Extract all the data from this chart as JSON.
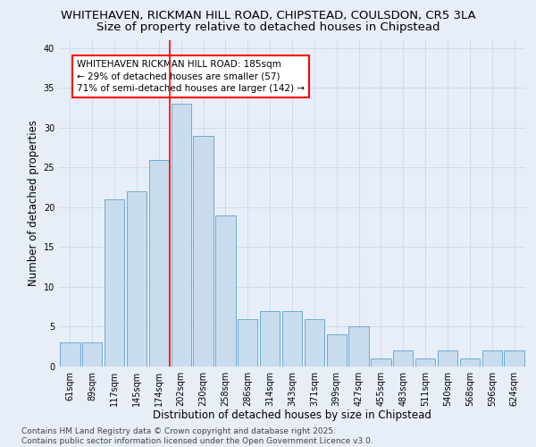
{
  "title_line1": "WHITEHAVEN, RICKMAN HILL ROAD, CHIPSTEAD, COULSDON, CR5 3LA",
  "title_line2": "Size of property relative to detached houses in Chipstead",
  "xlabel": "Distribution of detached houses by size in Chipstead",
  "ylabel": "Number of detached properties",
  "categories": [
    "61sqm",
    "89sqm",
    "117sqm",
    "145sqm",
    "174sqm",
    "202sqm",
    "230sqm",
    "258sqm",
    "286sqm",
    "314sqm",
    "343sqm",
    "371sqm",
    "399sqm",
    "427sqm",
    "455sqm",
    "483sqm",
    "511sqm",
    "540sqm",
    "568sqm",
    "596sqm",
    "624sqm"
  ],
  "values": [
    3,
    3,
    21,
    22,
    26,
    33,
    29,
    19,
    6,
    7,
    7,
    6,
    4,
    5,
    1,
    2,
    1,
    2,
    1,
    2,
    2
  ],
  "bar_color": "#c9dcee",
  "bar_edge_color": "#6aaad4",
  "red_line_index": 4.5,
  "annotation_text": "WHITEHAVEN RICKMAN HILL ROAD: 185sqm\n← 29% of detached houses are smaller (57)\n71% of semi-detached houses are larger (142) →",
  "annotation_box_color": "white",
  "annotation_box_edge_color": "red",
  "ylim": [
    0,
    41
  ],
  "yticks": [
    0,
    5,
    10,
    15,
    20,
    25,
    30,
    35,
    40
  ],
  "grid_color": "#c8d8e8",
  "background_color": "#e8eef8",
  "footnote": "Contains HM Land Registry data © Crown copyright and database right 2025.\nContains public sector information licensed under the Open Government Licence v3.0.",
  "title_fontsize": 9.5,
  "subtitle_fontsize": 9.5,
  "axis_label_fontsize": 8.5,
  "tick_fontsize": 7,
  "annotation_fontsize": 7.5,
  "footnote_fontsize": 6.5
}
